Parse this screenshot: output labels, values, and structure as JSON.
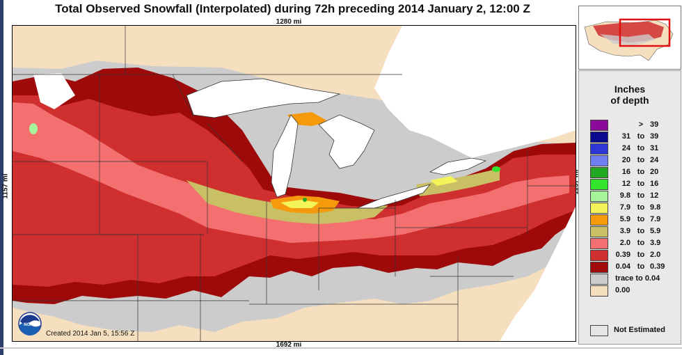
{
  "title": "Total Observed Snowfall (Interpolated) during 72h preceding 2014 January 2, 12:00 Z",
  "distances": {
    "top": "1280 mi",
    "bottom": "1692 mi",
    "left": "1157 mi",
    "right": "1157 mi"
  },
  "created": "Created 2014 Jan 5, 15:56 Z",
  "legend": {
    "title_line1": "Inches",
    "title_line2": "of depth",
    "bins": [
      {
        "lo": "",
        "to": ">",
        "hi": "39",
        "color": "#8b0a9a"
      },
      {
        "lo": "31",
        "to": "to",
        "hi": "39",
        "color": "#0a0a8c"
      },
      {
        "lo": "24",
        "to": "to",
        "hi": "31",
        "color": "#2e37d6"
      },
      {
        "lo": "20",
        "to": "to",
        "hi": "24",
        "color": "#6f7ff2"
      },
      {
        "lo": "16",
        "to": "to",
        "hi": "20",
        "color": "#22a822"
      },
      {
        "lo": "12",
        "to": "to",
        "hi": "16",
        "color": "#33e62b"
      },
      {
        "lo": "9.8",
        "to": "to",
        "hi": "12",
        "color": "#a6f59a"
      },
      {
        "lo": "7.9",
        "to": "to",
        "hi": "9.8",
        "color": "#f4f45a"
      },
      {
        "lo": "5.9",
        "to": "to",
        "hi": "7.9",
        "color": "#f59a0c"
      },
      {
        "lo": "3.9",
        "to": "to",
        "hi": "5.9",
        "color": "#c9bf65"
      },
      {
        "lo": "2.0",
        "to": "to",
        "hi": "3.9",
        "color": "#f47070"
      },
      {
        "lo": "0.39",
        "to": "to",
        "hi": "2.0",
        "color": "#cf2f2f"
      },
      {
        "lo": "0.04",
        "to": "to",
        "hi": "0.39",
        "color": "#9e0a0a"
      },
      {
        "lo": "trace",
        "to": "to",
        "hi": "0.04",
        "color": "#cccccc"
      },
      {
        "lo": "0.00",
        "to": "",
        "hi": "",
        "color": "#f6dfbe"
      }
    ],
    "not_estimated": "Not Estimated"
  },
  "colors": {
    "no_snow": "#f6dfbe",
    "trace": "#cccccc",
    "water": "#ffffff",
    "inset_highlight": "#e01010"
  },
  "logo_text": "NOAA"
}
